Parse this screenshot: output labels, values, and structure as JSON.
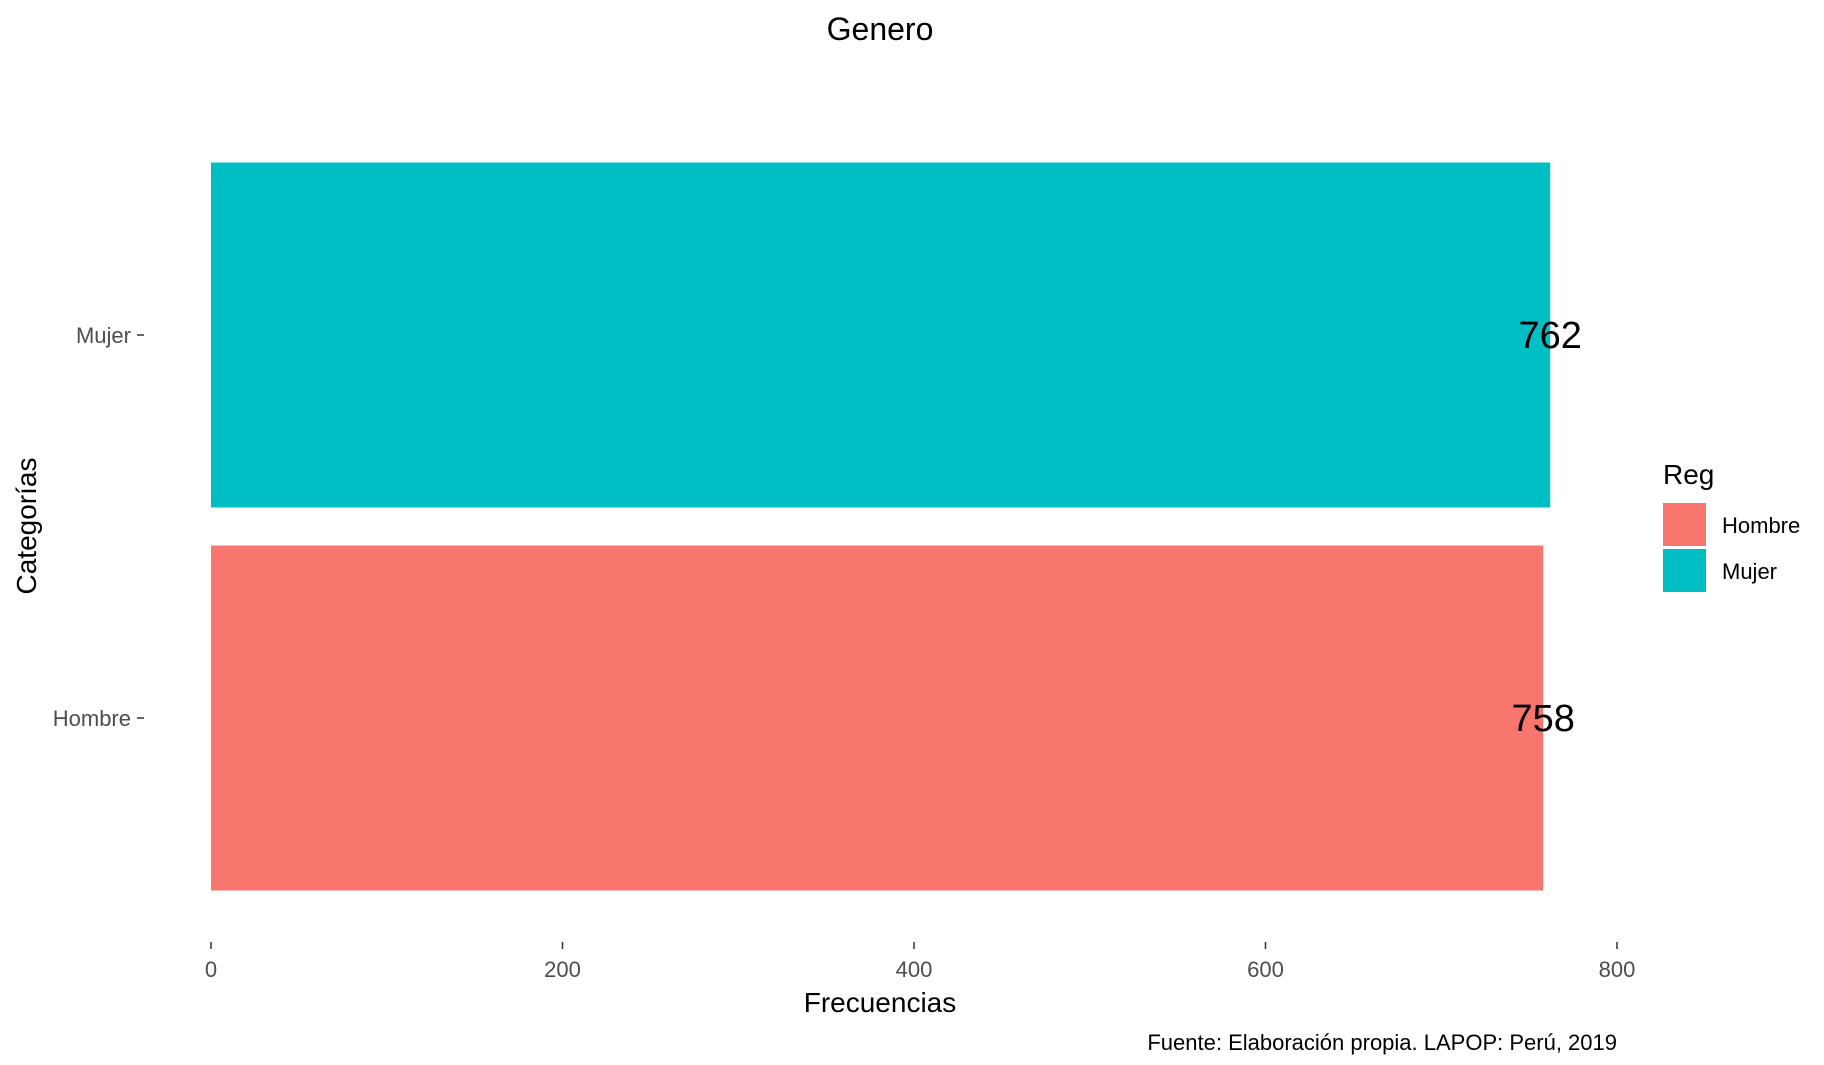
{
  "chart_data": {
    "type": "bar",
    "orientation": "horizontal",
    "title": "Genero",
    "xlabel": "Frecuencias",
    "ylabel": "Categorías",
    "categories": [
      "Hombre",
      "Mujer"
    ],
    "values": [
      758,
      762
    ],
    "data_labels": [
      "758",
      "762"
    ],
    "xlim": [
      0,
      800
    ],
    "xticks": [
      0,
      200,
      400,
      600,
      800
    ],
    "grid": false,
    "colors": {
      "Hombre": "#F8766D",
      "Mujer": "#00BFC4"
    },
    "legend": {
      "title": "Reg",
      "position": "right",
      "entries": [
        "Hombre",
        "Mujer"
      ]
    },
    "caption": "Fuente: Elaboración propia. LAPOP: Perú, 2019"
  }
}
